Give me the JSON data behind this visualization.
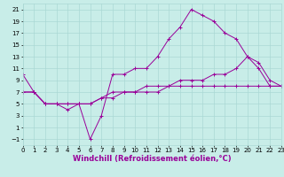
{
  "xlabel": "Windchill (Refroidissement éolien,°C)",
  "background_color": "#c8ede8",
  "grid_color": "#aad8d4",
  "line_color": "#990099",
  "xlim": [
    0,
    23
  ],
  "ylim": [
    -2,
    22
  ],
  "xticks": [
    0,
    1,
    2,
    3,
    4,
    5,
    6,
    7,
    8,
    9,
    10,
    11,
    12,
    13,
    14,
    15,
    16,
    17,
    18,
    19,
    20,
    21,
    22,
    23
  ],
  "yticks": [
    -1,
    1,
    3,
    5,
    7,
    9,
    11,
    13,
    15,
    17,
    19,
    21
  ],
  "series": [
    {
      "x": [
        0,
        1,
        2,
        3,
        4,
        5,
        6,
        7,
        8,
        9,
        10,
        11,
        12,
        13,
        14,
        15,
        16,
        17,
        18,
        19,
        20,
        21,
        22,
        23
      ],
      "y": [
        10,
        7,
        5,
        5,
        4,
        5,
        -1,
        3,
        10,
        10,
        11,
        11,
        13,
        16,
        18,
        21,
        20,
        19,
        17,
        16,
        13,
        11,
        8,
        8
      ]
    },
    {
      "x": [
        0,
        1,
        2,
        3,
        4,
        5,
        6,
        7,
        8,
        9,
        10,
        11,
        12,
        13,
        14,
        15,
        16,
        17,
        18,
        19,
        20,
        21,
        22,
        23
      ],
      "y": [
        7,
        7,
        5,
        5,
        5,
        5,
        5,
        6,
        7,
        7,
        7,
        8,
        8,
        8,
        9,
        9,
        9,
        10,
        10,
        11,
        13,
        12,
        9,
        8
      ]
    },
    {
      "x": [
        0,
        1,
        2,
        3,
        4,
        5,
        6,
        7,
        8,
        9,
        10,
        11,
        12,
        13,
        14,
        15,
        16,
        17,
        18,
        19,
        20,
        21,
        22,
        23
      ],
      "y": [
        7,
        7,
        5,
        5,
        5,
        5,
        5,
        6,
        6,
        7,
        7,
        7,
        7,
        8,
        8,
        8,
        8,
        8,
        8,
        8,
        8,
        8,
        8,
        8
      ]
    }
  ],
  "tick_fontsize": 5,
  "xlabel_fontsize": 6
}
